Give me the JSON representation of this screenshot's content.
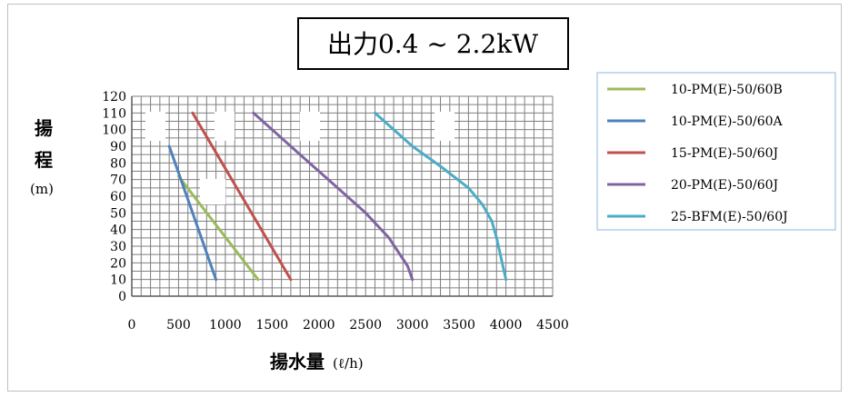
{
  "chart_data": {
    "type": "line",
    "title": "出力0.4 ~ 2.2kW",
    "xlabel_main": "揚水量",
    "xlabel_unit": "(ℓ/h)",
    "ylabel_main": [
      "揚",
      "程"
    ],
    "ylabel_unit": "(m)",
    "xlim": [
      0,
      4500
    ],
    "ylim": [
      0,
      120
    ],
    "x_ticks": [
      0,
      500,
      1000,
      1500,
      2000,
      2500,
      3000,
      3500,
      4000,
      4500
    ],
    "y_ticks": [
      0,
      10,
      20,
      30,
      40,
      50,
      60,
      70,
      80,
      90,
      100,
      110,
      120
    ],
    "grid": true,
    "legend_position": "right",
    "series": [
      {
        "name": "10-PM(E)-50/60B",
        "color": "#9bbb59",
        "x": [
          500,
          1350
        ],
        "y": [
          72,
          10
        ]
      },
      {
        "name": "10-PM(E)-50/60A",
        "color": "#4f81bd",
        "x": [
          400,
          900
        ],
        "y": [
          90,
          10
        ]
      },
      {
        "name": "15-PM(E)-50/60J",
        "color": "#c0504d",
        "x": [
          650,
          1700
        ],
        "y": [
          110,
          10
        ]
      },
      {
        "name": "20-PM(E)-50/60J",
        "color": "#8064a2",
        "x": [
          1300,
          1800,
          2200,
          2500,
          2750,
          2950,
          3000
        ],
        "y": [
          110,
          85,
          65,
          50,
          35,
          18,
          10
        ]
      },
      {
        "name": "25-BFM(E)-50/60J",
        "color": "#4bacc6",
        "x": [
          2600,
          3000,
          3300,
          3600,
          3750,
          3850,
          3900,
          4000
        ],
        "y": [
          110,
          90,
          78,
          65,
          55,
          45,
          35,
          10
        ]
      }
    ]
  }
}
